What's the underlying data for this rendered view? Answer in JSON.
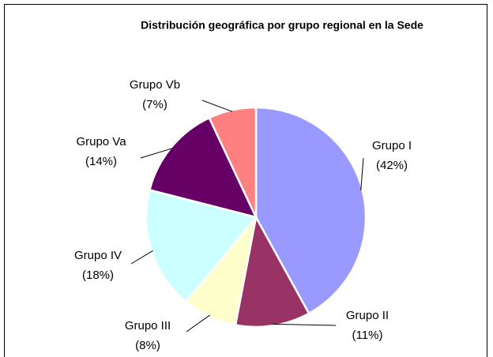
{
  "chart_data": {
    "type": "pie",
    "title": "Distribución geográfica por grupo regional en la Sede",
    "categories": [
      "Grupo I",
      "Grupo II",
      "Grupo III",
      "Grupo IV",
      "Grupo Va",
      "Grupo Vb"
    ],
    "values": [
      42,
      11,
      8,
      18,
      14,
      7
    ],
    "value_labels": [
      "(42%)",
      "(11%)",
      "(8%)",
      "(18%)",
      "(14%)",
      "(7%)"
    ],
    "colors": [
      "#9999ff",
      "#993366",
      "#ffffcc",
      "#ccffff",
      "#660066",
      "#ff8080"
    ]
  }
}
